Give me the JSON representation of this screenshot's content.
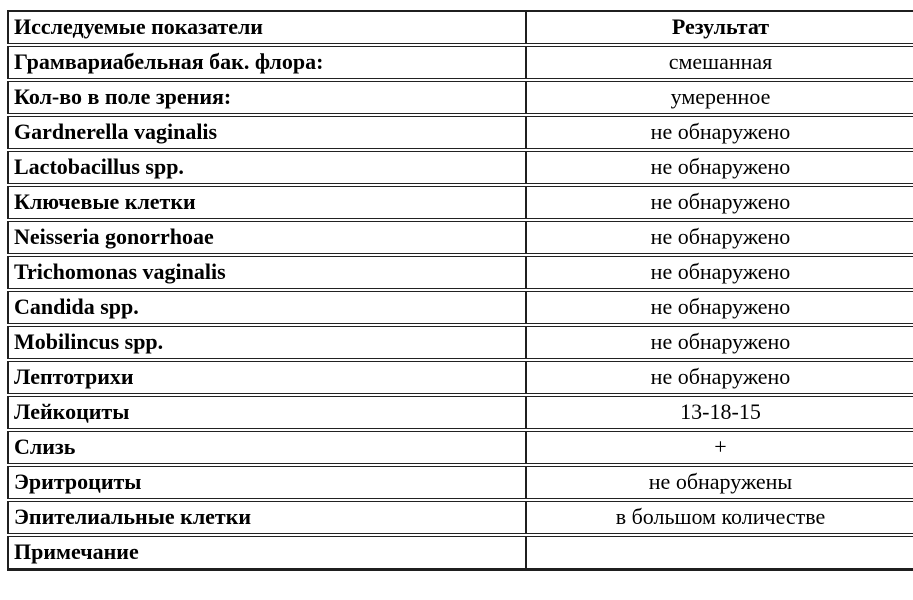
{
  "table": {
    "header": {
      "parameter": "Исследуемые показатели",
      "result": "Результат"
    },
    "rows": [
      {
        "parameter": "Грамвариабельная бак. флора:",
        "result": "смешанная"
      },
      {
        "parameter": "Кол-во в поле зрения:",
        "result": "умеренное"
      },
      {
        "parameter": "Gardnerella vaginalis",
        "result": "не обнаружено"
      },
      {
        "parameter": "Lactobacillus spp.",
        "result": "не обнаружено"
      },
      {
        "parameter": "Ключевые клетки",
        "result": "не обнаружено"
      },
      {
        "parameter": "Neisseria gonorrhoae",
        "result": "не обнаружено"
      },
      {
        "parameter": "Trichomonas vaginalis",
        "result": "не обнаружено"
      },
      {
        "parameter": "Candida spp.",
        "result": "не обнаружено"
      },
      {
        "parameter": "Mobilincus spp.",
        "result": "не обнаружено"
      },
      {
        "parameter": "Лептотрихи",
        "result": "не обнаружено"
      },
      {
        "parameter": "Лейкоциты",
        "result": "13-18-15"
      },
      {
        "parameter": "Слизь",
        "result": "+"
      },
      {
        "parameter": "Эритроциты",
        "result": "не обнаружены"
      },
      {
        "parameter": "Эпителиальные клетки",
        "result": "в большом количестве"
      },
      {
        "parameter": "Примечание",
        "result": ""
      }
    ]
  },
  "colors": {
    "text": "#000000",
    "border": "#1f1f1f",
    "background": "#ffffff"
  }
}
